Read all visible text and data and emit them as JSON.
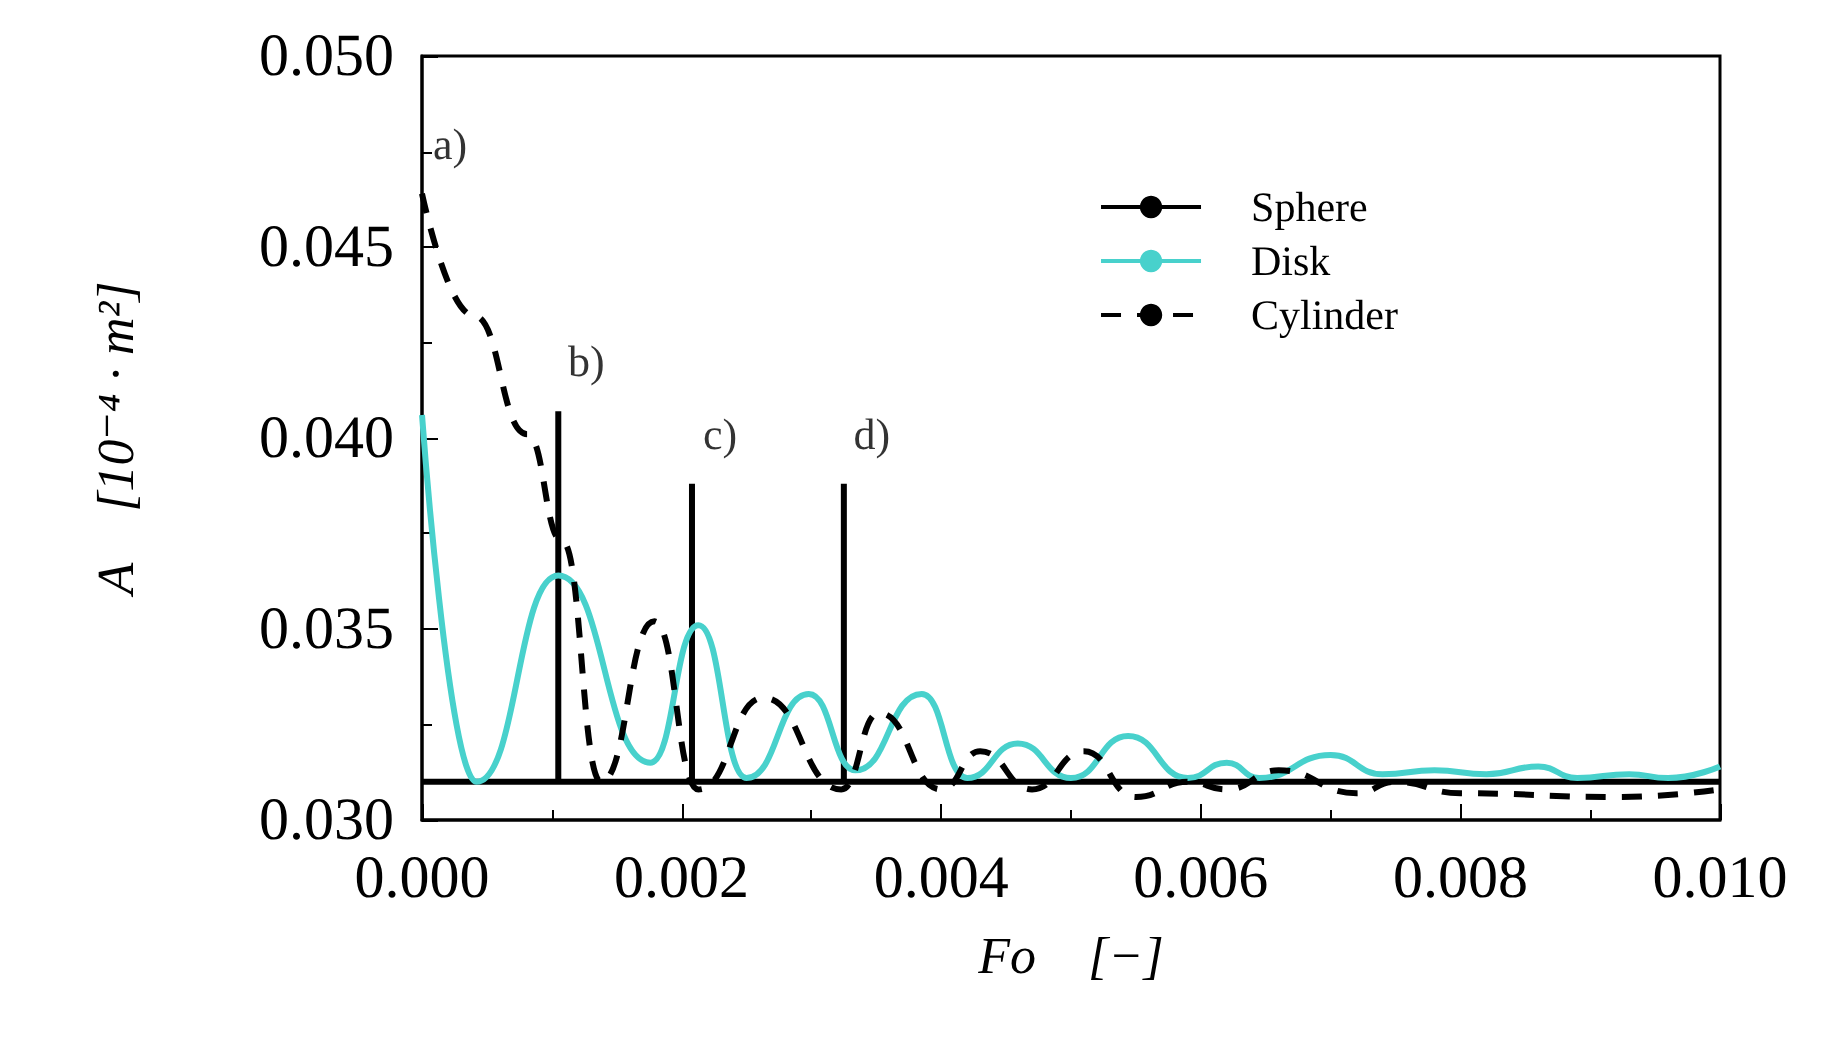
{
  "chart_data": {
    "type": "line",
    "xlabel": "Fo    [−]",
    "ylabel": "A    [10⁻⁴ · m²]",
    "series": [
      {
        "name": "Sphere",
        "color": "#000000",
        "line_style": "solid",
        "x": [
          0,
          0.001,
          0.002,
          0.004,
          0.006,
          0.008,
          0.01
        ],
        "values": [
          0.031,
          0.031,
          0.031,
          0.031,
          0.031,
          0.031,
          0.031
        ]
      },
      {
        "name": "Disk",
        "color": "#48d1cc",
        "line_style": "solid",
        "x": [
          0,
          0.00042,
          0.00105,
          0.00176,
          0.00213,
          0.0025,
          0.00298,
          0.00334,
          0.00385,
          0.0042,
          0.00459,
          0.005,
          0.00544,
          0.0059,
          0.0062,
          0.00645,
          0.007,
          0.0074,
          0.0078,
          0.0082,
          0.0086,
          0.0089,
          0.0093,
          0.0096,
          0.01
        ],
        "values": [
          0.0406,
          0.031,
          0.0364,
          0.0315,
          0.0351,
          0.0311,
          0.0333,
          0.0313,
          0.0333,
          0.0311,
          0.032,
          0.0311,
          0.0322,
          0.0311,
          0.0315,
          0.0311,
          0.0317,
          0.0312,
          0.0313,
          0.0312,
          0.0314,
          0.0311,
          0.0312,
          0.0311,
          0.0314
        ]
      },
      {
        "name": "Cylinder",
        "color": "#000000",
        "line_style": "dashed",
        "x": [
          0,
          0.0004,
          0.00081,
          0.00108,
          0.00138,
          0.00179,
          0.00213,
          0.00263,
          0.00323,
          0.00352,
          0.004,
          0.0043,
          0.0047,
          0.0051,
          0.0055,
          0.0059,
          0.0062,
          0.0066,
          0.0072,
          0.0075,
          0.008,
          0.0092,
          0.01
        ],
        "values": [
          0.0464,
          0.0432,
          0.0401,
          0.0373,
          0.031,
          0.0352,
          0.0308,
          0.0332,
          0.0308,
          0.0328,
          0.0308,
          0.0318,
          0.0308,
          0.0318,
          0.0306,
          0.031,
          0.0308,
          0.0313,
          0.0307,
          0.031,
          0.0307,
          0.0306,
          0.0308
        ]
      },
      {
        "color": "#000000",
        "line_style": "solid",
        "x": [
          0.00105,
          0.00105,
          null,
          0.00208,
          0.00208,
          null,
          0.00325,
          0.00325
        ],
        "values": [
          0.031,
          0.0407,
          null,
          0.031,
          0.0388,
          null,
          0.031,
          0.0388
        ]
      }
    ],
    "annotations": [
      {
        "text": "a)",
        "x": 0,
        "y": 0.0464
      },
      {
        "text": "b)",
        "x": 0.00105,
        "y": 0.0407
      },
      {
        "text": "c)",
        "x": 0.00208,
        "y": 0.0388
      },
      {
        "text": "d)",
        "x": 0.00325,
        "y": 0.0388
      }
    ],
    "xlim": [
      0,
      0.01
    ],
    "ylim": [
      0.03,
      0.05
    ],
    "xticks": [
      {
        "value": 0,
        "label": "0.000"
      },
      {
        "value": 0.002,
        "label": "0.002"
      },
      {
        "value": 0.004,
        "label": "0.004"
      },
      {
        "value": 0.006,
        "label": "0.006"
      },
      {
        "value": 0.008,
        "label": "0.008"
      },
      {
        "value": 0.01,
        "label": "0.010"
      }
    ],
    "yticks": [
      {
        "value": 0.03,
        "label": "0.030"
      },
      {
        "value": 0.035,
        "label": "0.035"
      },
      {
        "value": 0.04,
        "label": "0.040"
      },
      {
        "value": 0.045,
        "label": "0.045"
      },
      {
        "value": 0.05,
        "label": "0.050"
      }
    ],
    "grid": false,
    "legend": "top right",
    "marker": "none"
  }
}
